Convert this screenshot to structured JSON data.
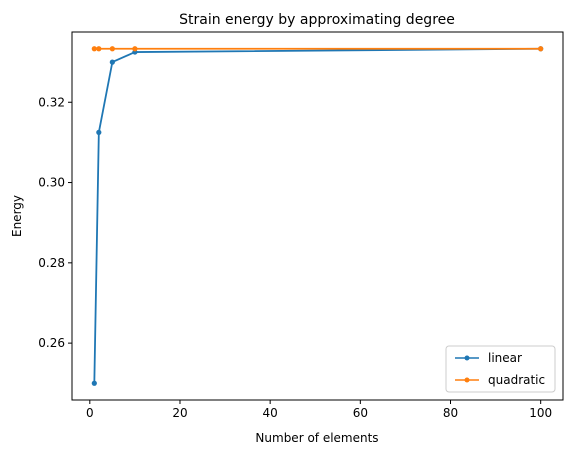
{
  "chart_data": {
    "type": "line",
    "title": "Strain energy by approximating degree",
    "xlabel": "Number of elements",
    "ylabel": "Energy",
    "xlim": [
      -3.95,
      104.95
    ],
    "ylim": [
      0.245833,
      0.3375
    ],
    "xticks": [
      0,
      20,
      40,
      60,
      80,
      100
    ],
    "yticks": [
      0.26,
      0.28,
      0.3,
      0.32
    ],
    "xtick_labels": [
      "0",
      "20",
      "40",
      "60",
      "80",
      "100"
    ],
    "ytick_labels": [
      "0.26",
      "0.28",
      "0.30",
      "0.32"
    ],
    "grid": false,
    "legend_position": "lower-right",
    "series": [
      {
        "name": "linear",
        "color": "#1f77b4",
        "marker": "circle",
        "x": [
          1,
          2,
          5,
          10,
          100
        ],
        "y": [
          0.25,
          0.3125,
          0.33,
          0.3325,
          0.333325
        ]
      },
      {
        "name": "quadratic",
        "color": "#ff7f0e",
        "marker": "circle",
        "x": [
          1,
          2,
          5,
          10,
          100
        ],
        "y": [
          0.333333,
          0.333333,
          0.333333,
          0.333333,
          0.333333
        ]
      }
    ]
  }
}
